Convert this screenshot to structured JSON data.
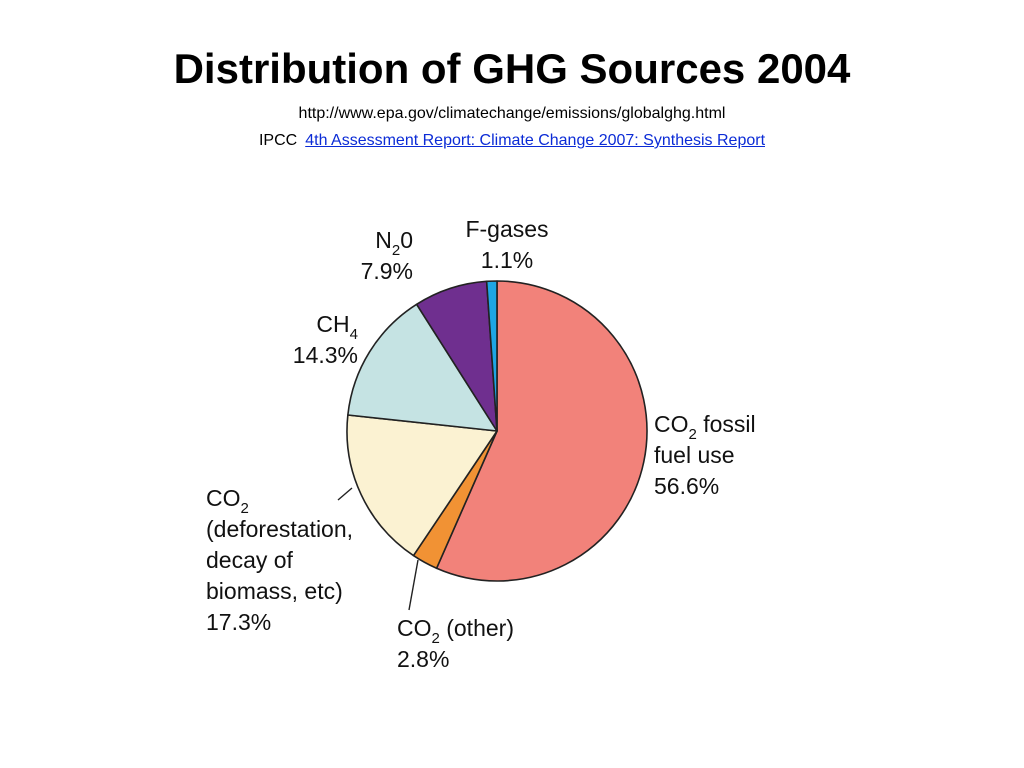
{
  "slide": {
    "title": "Distribution of GHG Sources 2004",
    "source_url": "http://www.epa.gov/climatechange/emissions/globalghg.html",
    "citation_prefix": "IPCC",
    "citation_link": "4th Assessment Report: Climate Change 2007:  Synthesis Report"
  },
  "chart_data": {
    "type": "pie",
    "title": "",
    "slices": [
      {
        "id": "co2-fossil",
        "lines": [
          [
            "CO",
            "2",
            " fossil"
          ],
          [
            "fuel use"
          ],
          [
            "56.6%"
          ]
        ],
        "value": 56.6,
        "color": "#f2827a"
      },
      {
        "id": "co2-other",
        "lines": [
          [
            "CO",
            "2",
            " (other)"
          ],
          [
            "2.8%"
          ]
        ],
        "value": 2.8,
        "color": "#f19234"
      },
      {
        "id": "co2-deforestation",
        "lines": [
          [
            "CO",
            "2"
          ],
          [
            "(deforestation,"
          ],
          [
            "decay of"
          ],
          [
            "biomass, etc)"
          ],
          [
            "17.3%"
          ]
        ],
        "value": 17.3,
        "color": "#fbf2d2"
      },
      {
        "id": "ch4",
        "lines": [
          [
            "CH",
            "4"
          ],
          [
            "14.3%"
          ]
        ],
        "value": 14.3,
        "color": "#c5e3e3"
      },
      {
        "id": "n2o",
        "lines": [
          [
            "N",
            "2",
            "0"
          ],
          [
            "7.9%"
          ]
        ],
        "value": 7.9,
        "color": "#6f2f8f"
      },
      {
        "id": "f-gases",
        "lines": [
          [
            "F-gases"
          ],
          [
            "1.1%"
          ]
        ],
        "value": 1.1,
        "color": "#1ea6e4"
      }
    ]
  }
}
